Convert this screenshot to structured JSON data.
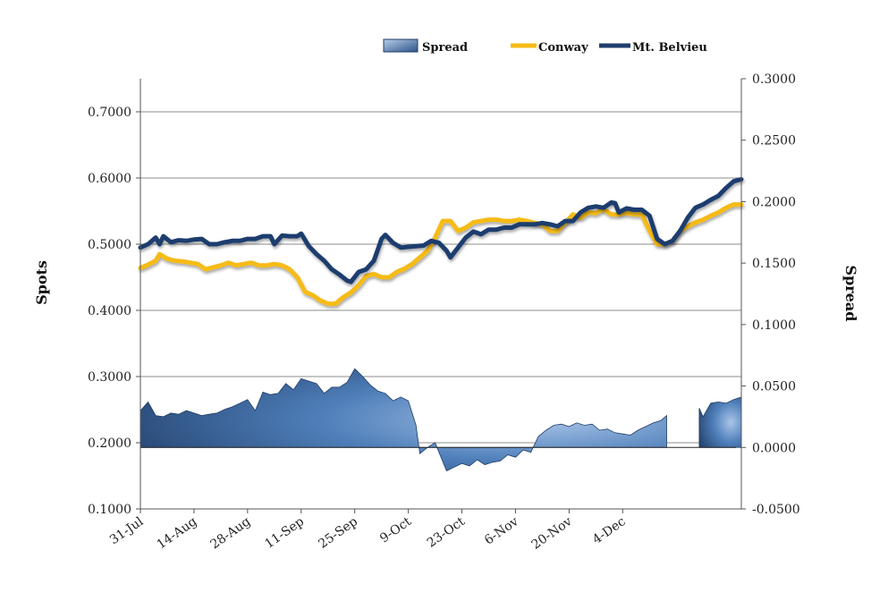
{
  "chart_data": {
    "type": "line",
    "xlabel": "",
    "ylabel": "Spots",
    "y2label": "Spread",
    "ylim": [
      0.1,
      0.75
    ],
    "y2lim": [
      -0.05,
      0.3
    ],
    "y_ticks": [
      "0.1000",
      "0.2000",
      "0.3000",
      "0.4000",
      "0.5000",
      "0.6000",
      "0.7000"
    ],
    "y2_ticks": [
      "-0.0500",
      "0.0000",
      "0.0500",
      "0.1000",
      "0.1500",
      "0.2000",
      "0.2500",
      "0.3000"
    ],
    "x_ticks": [
      "31-Jul",
      "14-Aug",
      "28-Aug",
      "11-Sep",
      "25-Sep",
      "9-Oct",
      "23-Oct",
      "6-Nov",
      "20-Nov",
      "4-Dec"
    ],
    "grid": true,
    "legend_position": "top-right",
    "colors": {
      "spread": "#2f5f99",
      "conway": "#f6bb16",
      "belvieu": "#1f3e6e"
    },
    "series": [
      {
        "name": "Spread",
        "axis": "right",
        "kind": "area",
        "points": [
          [
            0,
            0.03
          ],
          [
            2,
            0.037
          ],
          [
            4,
            0.026
          ],
          [
            6,
            0.025
          ],
          [
            8,
            0.028
          ],
          [
            10,
            0.027
          ],
          [
            12,
            0.03
          ],
          [
            14,
            0.028
          ],
          [
            16,
            0.026
          ],
          [
            18,
            0.027
          ],
          [
            20,
            0.028
          ],
          [
            22,
            0.031
          ],
          [
            24,
            0.033
          ],
          [
            26,
            0.036
          ],
          [
            28,
            0.039
          ],
          [
            30,
            0.03
          ],
          [
            32,
            0.045
          ],
          [
            34,
            0.043
          ],
          [
            36,
            0.044
          ],
          [
            38,
            0.052
          ],
          [
            40,
            0.047
          ],
          [
            42,
            0.056
          ],
          [
            44,
            0.054
          ],
          [
            46,
            0.052
          ],
          [
            48,
            0.044
          ],
          [
            50,
            0.049
          ],
          [
            52,
            0.049
          ],
          [
            54,
            0.053
          ],
          [
            56,
            0.064
          ],
          [
            58,
            0.058
          ],
          [
            60,
            0.051
          ],
          [
            62,
            0.046
          ],
          [
            64,
            0.044
          ],
          [
            66,
            0.038
          ],
          [
            68,
            0.041
          ],
          [
            70,
            0.038
          ],
          [
            72,
            0.018
          ],
          [
            73,
            -0.005
          ],
          [
            75,
            0
          ],
          [
            77,
            0.004
          ],
          [
            78,
            -0.004
          ],
          [
            80,
            -0.019
          ],
          [
            82,
            -0.016
          ],
          [
            84,
            -0.013
          ],
          [
            86,
            -0.015
          ],
          [
            88,
            -0.01
          ],
          [
            90,
            -0.014
          ],
          [
            92,
            -0.012
          ],
          [
            94,
            -0.011
          ],
          [
            96,
            -0.006
          ],
          [
            98,
            -0.008
          ],
          [
            100,
            -0.002
          ],
          [
            102,
            -0.004
          ],
          [
            104,
            0.009
          ],
          [
            106,
            0.014
          ],
          [
            108,
            0.018
          ],
          [
            110,
            0.019
          ],
          [
            112,
            0.017
          ],
          [
            114,
            0.02
          ],
          [
            116,
            0.018
          ],
          [
            118,
            0.019
          ],
          [
            120,
            0.014
          ],
          [
            122,
            0.015
          ],
          [
            124,
            0.012
          ],
          [
            126,
            0.011
          ],
          [
            128,
            0.01
          ],
          [
            130,
            0.014
          ],
          [
            132,
            0.017
          ],
          [
            134,
            0.02
          ],
          [
            136,
            0.022
          ],
          [
            137.5,
            0.026
          ],
          [
            137.5,
            null
          ],
          [
            146,
            null
          ],
          [
            146,
            0.032
          ],
          [
            147,
            0.025
          ],
          [
            149,
            0.036
          ],
          [
            151,
            0.037
          ],
          [
            153,
            0.036
          ],
          [
            155,
            0.039
          ],
          [
            157,
            0.041
          ]
        ]
      },
      {
        "name": "Conway",
        "axis": "left",
        "kind": "line",
        "points": [
          [
            0,
            0.464
          ],
          [
            2,
            0.469
          ],
          [
            4,
            0.475
          ],
          [
            5,
            0.485
          ],
          [
            7,
            0.478
          ],
          [
            9,
            0.475
          ],
          [
            11,
            0.474
          ],
          [
            13,
            0.472
          ],
          [
            15,
            0.47
          ],
          [
            17,
            0.462
          ],
          [
            19,
            0.465
          ],
          [
            21,
            0.468
          ],
          [
            23,
            0.472
          ],
          [
            25,
            0.468
          ],
          [
            27,
            0.47
          ],
          [
            29,
            0.472
          ],
          [
            31,
            0.468
          ],
          [
            33,
            0.468
          ],
          [
            35,
            0.47
          ],
          [
            37,
            0.468
          ],
          [
            39,
            0.462
          ],
          [
            41,
            0.45
          ],
          [
            43,
            0.428
          ],
          [
            45,
            0.423
          ],
          [
            47,
            0.415
          ],
          [
            49,
            0.41
          ],
          [
            51,
            0.41
          ],
          [
            53,
            0.42
          ],
          [
            55,
            0.427
          ],
          [
            57,
            0.438
          ],
          [
            59,
            0.452
          ],
          [
            61,
            0.455
          ],
          [
            63,
            0.45
          ],
          [
            65,
            0.45
          ],
          [
            67,
            0.458
          ],
          [
            69,
            0.463
          ],
          [
            71,
            0.47
          ],
          [
            73,
            0.48
          ],
          [
            75,
            0.49
          ],
          [
            77,
            0.51
          ],
          [
            79,
            0.535
          ],
          [
            81,
            0.535
          ],
          [
            83,
            0.52
          ],
          [
            85,
            0.525
          ],
          [
            87,
            0.533
          ],
          [
            89,
            0.535
          ],
          [
            91,
            0.537
          ],
          [
            93,
            0.537
          ],
          [
            95,
            0.535
          ],
          [
            97,
            0.535
          ],
          [
            99,
            0.537
          ],
          [
            101,
            0.535
          ],
          [
            103,
            0.532
          ],
          [
            105,
            0.53
          ],
          [
            107,
            0.52
          ],
          [
            109,
            0.52
          ],
          [
            111,
            0.532
          ],
          [
            113,
            0.545
          ],
          [
            115,
            0.54
          ],
          [
            117,
            0.548
          ],
          [
            119,
            0.547
          ],
          [
            121,
            0.553
          ],
          [
            123,
            0.545
          ],
          [
            125,
            0.545
          ],
          [
            127,
            0.547
          ],
          [
            129,
            0.545
          ],
          [
            131,
            0.545
          ],
          [
            133,
            0.52
          ],
          [
            135,
            0.5
          ],
          [
            137,
            0.5
          ],
          [
            139,
            0.505
          ],
          [
            141,
            0.52
          ],
          [
            143,
            0.527
          ],
          [
            145,
            0.533
          ],
          [
            147,
            0.537
          ],
          [
            149,
            0.543
          ],
          [
            151,
            0.548
          ],
          [
            153,
            0.555
          ],
          [
            155,
            0.56
          ],
          [
            157,
            0.56
          ]
        ]
      },
      {
        "name": "Mt. Belvieu",
        "axis": "left",
        "kind": "line",
        "points": [
          [
            0,
            0.495
          ],
          [
            2,
            0.5
          ],
          [
            4,
            0.51
          ],
          [
            5,
            0.5
          ],
          [
            6,
            0.512
          ],
          [
            8,
            0.503
          ],
          [
            10,
            0.506
          ],
          [
            12,
            0.505
          ],
          [
            14,
            0.507
          ],
          [
            16,
            0.508
          ],
          [
            18,
            0.5
          ],
          [
            20,
            0.5
          ],
          [
            22,
            0.503
          ],
          [
            24,
            0.505
          ],
          [
            26,
            0.505
          ],
          [
            28,
            0.508
          ],
          [
            30,
            0.508
          ],
          [
            32,
            0.512
          ],
          [
            34,
            0.512
          ],
          [
            35,
            0.5
          ],
          [
            37,
            0.513
          ],
          [
            39,
            0.512
          ],
          [
            41,
            0.512
          ],
          [
            42,
            0.516
          ],
          [
            44,
            0.497
          ],
          [
            46,
            0.485
          ],
          [
            48,
            0.475
          ],
          [
            50,
            0.462
          ],
          [
            52,
            0.454
          ],
          [
            54,
            0.445
          ],
          [
            55,
            0.443
          ],
          [
            57,
            0.458
          ],
          [
            59,
            0.462
          ],
          [
            61,
            0.475
          ],
          [
            63,
            0.508
          ],
          [
            64,
            0.514
          ],
          [
            66,
            0.502
          ],
          [
            68,
            0.495
          ],
          [
            70,
            0.496
          ],
          [
            72,
            0.497
          ],
          [
            74,
            0.498
          ],
          [
            76,
            0.505
          ],
          [
            78,
            0.502
          ],
          [
            80,
            0.49
          ],
          [
            81,
            0.48
          ],
          [
            83,
            0.495
          ],
          [
            85,
            0.51
          ],
          [
            87,
            0.519
          ],
          [
            89,
            0.515
          ],
          [
            91,
            0.522
          ],
          [
            93,
            0.522
          ],
          [
            95,
            0.525
          ],
          [
            97,
            0.525
          ],
          [
            99,
            0.53
          ],
          [
            101,
            0.53
          ],
          [
            103,
            0.53
          ],
          [
            105,
            0.532
          ],
          [
            107,
            0.53
          ],
          [
            109,
            0.527
          ],
          [
            111,
            0.535
          ],
          [
            113,
            0.535
          ],
          [
            115,
            0.548
          ],
          [
            117,
            0.555
          ],
          [
            119,
            0.557
          ],
          [
            121,
            0.555
          ],
          [
            123,
            0.563
          ],
          [
            124,
            0.562
          ],
          [
            125,
            0.548
          ],
          [
            127,
            0.554
          ],
          [
            129,
            0.552
          ],
          [
            131,
            0.552
          ],
          [
            133,
            0.543
          ],
          [
            135,
            0.508
          ],
          [
            137,
            0.5
          ],
          [
            139,
            0.505
          ],
          [
            141,
            0.52
          ],
          [
            143,
            0.54
          ],
          [
            145,
            0.555
          ],
          [
            147,
            0.56
          ],
          [
            149,
            0.567
          ],
          [
            151,
            0.573
          ],
          [
            153,
            0.585
          ],
          [
            155,
            0.595
          ],
          [
            157,
            0.598
          ]
        ]
      }
    ]
  }
}
